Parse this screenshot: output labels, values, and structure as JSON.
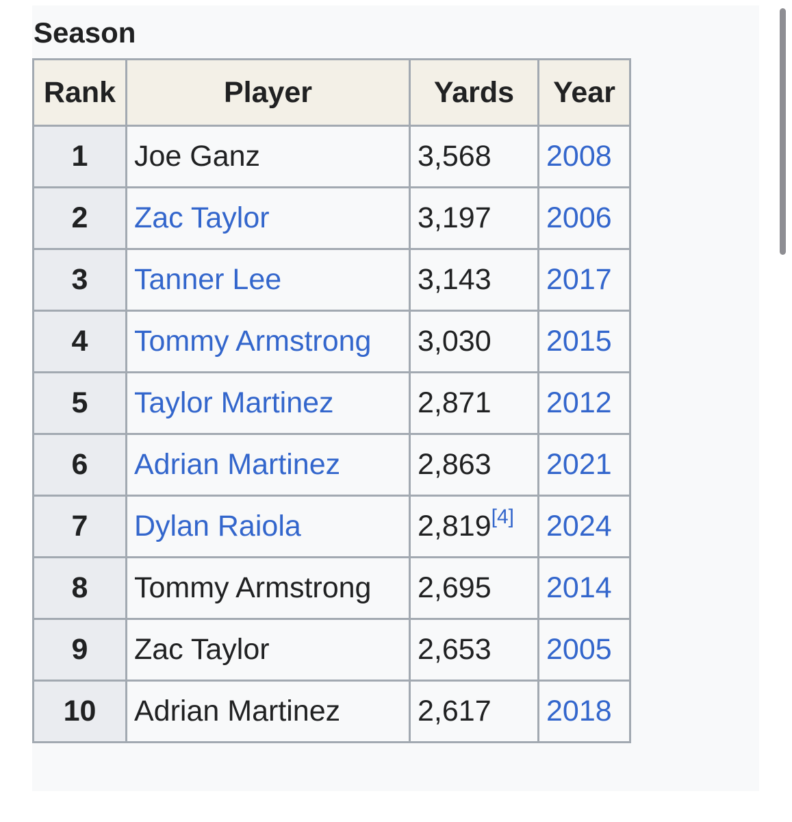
{
  "section": {
    "title": "Season"
  },
  "table": {
    "headers": {
      "rank": "Rank",
      "player": "Player",
      "yards": "Yards",
      "year": "Year"
    },
    "rows": [
      {
        "rank": "1",
        "player": "Joe Ganz",
        "player_linked": false,
        "yards": "3,568",
        "ref": "",
        "year": "2008"
      },
      {
        "rank": "2",
        "player": "Zac Taylor",
        "player_linked": true,
        "yards": "3,197",
        "ref": "",
        "year": "2006"
      },
      {
        "rank": "3",
        "player": "Tanner Lee",
        "player_linked": true,
        "yards": "3,143",
        "ref": "",
        "year": "2017"
      },
      {
        "rank": "4",
        "player": "Tommy Armstrong",
        "player_linked": true,
        "yards": "3,030",
        "ref": "",
        "year": "2015"
      },
      {
        "rank": "5",
        "player": "Taylor Martinez",
        "player_linked": true,
        "yards": "2,871",
        "ref": "",
        "year": "2012"
      },
      {
        "rank": "6",
        "player": "Adrian Martinez",
        "player_linked": true,
        "yards": "2,863",
        "ref": "",
        "year": "2021"
      },
      {
        "rank": "7",
        "player": "Dylan Raiola",
        "player_linked": true,
        "yards": "2,819",
        "ref": "[4]",
        "year": "2024"
      },
      {
        "rank": "8",
        "player": "Tommy Armstrong",
        "player_linked": false,
        "yards": "2,695",
        "ref": "",
        "year": "2014"
      },
      {
        "rank": "9",
        "player": "Zac Taylor",
        "player_linked": false,
        "yards": "2,653",
        "ref": "",
        "year": "2005"
      },
      {
        "rank": "10",
        "player": "Adrian Martinez",
        "player_linked": false,
        "yards": "2,617",
        "ref": "",
        "year": "2018"
      }
    ]
  },
  "colors": {
    "link": "#3366cc",
    "text": "#202122",
    "header_bg": "#f3f0e7",
    "rank_bg": "#eaecf0",
    "border": "#a2a9b1"
  }
}
